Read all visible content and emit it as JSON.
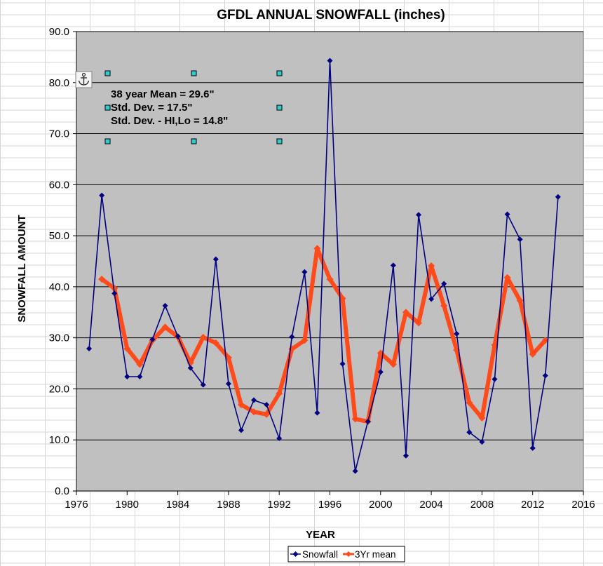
{
  "colors": {
    "plot_bg": "#c0c0c0",
    "snowfall": "#000080",
    "mean": "#ff4a1a",
    "sheet_grid": "#d4d4d4",
    "handle": "#33cccc"
  },
  "icons": {
    "anchor": "anchor-icon"
  },
  "chart_data": {
    "type": "line",
    "title": "GFDL ANNUAL SNOWFALL (inches)",
    "xlabel": "YEAR",
    "ylabel": "SNOWFALL AMOUNT",
    "xlim": [
      1976,
      2016
    ],
    "ylim": [
      0,
      90
    ],
    "x_ticks": [
      1976,
      1980,
      1984,
      1988,
      1992,
      1996,
      2000,
      2004,
      2008,
      2012,
      2016
    ],
    "y_ticks": [
      0,
      10,
      20,
      30,
      40,
      50,
      60,
      70,
      80,
      90
    ],
    "y_tick_labels": [
      "0.0",
      "10.0",
      "20.0",
      "30.0",
      "40.0",
      "50.0",
      "60.0",
      "70.0",
      "80.0",
      "90.0"
    ],
    "grid": "horizontal",
    "legend_position": "bottom",
    "annotations": [
      "38 year Mean = 29.6\"",
      "Std. Dev. = 17.5\"",
      "Std. Dev. - HI,Lo = 14.8\""
    ],
    "series": [
      {
        "name": "Snowfall",
        "x": [
          1977,
          1978,
          1979,
          1980,
          1981,
          1982,
          1983,
          1984,
          1985,
          1986,
          1987,
          1988,
          1989,
          1990,
          1991,
          1992,
          1993,
          1994,
          1995,
          1996,
          1997,
          1998,
          1999,
          2000,
          2001,
          2002,
          2003,
          2004,
          2005,
          2006,
          2007,
          2008,
          2009,
          2010,
          2011,
          2012,
          2013,
          2014
        ],
        "values": [
          27.9,
          57.9,
          38.7,
          22.4,
          22.4,
          29.7,
          36.3,
          30.3,
          24.1,
          20.8,
          45.4,
          21.0,
          11.9,
          17.8,
          16.9,
          10.3,
          30.2,
          42.9,
          15.3,
          84.3,
          24.9,
          3.9,
          13.6,
          23.3,
          44.2,
          6.9,
          54.1,
          37.6,
          40.6,
          30.8,
          11.5,
          9.6,
          21.9,
          54.2,
          49.3,
          8.4,
          22.6,
          57.6
        ]
      },
      {
        "name": "3Yr mean",
        "x": [
          1978,
          1979,
          1980,
          1981,
          1982,
          1983,
          1984,
          1985,
          1986,
          1987,
          1988,
          1989,
          1990,
          1991,
          1992,
          1993,
          1994,
          1995,
          1996,
          1997,
          1998,
          1999,
          2000,
          2001,
          2002,
          2003,
          2004,
          2005,
          2006,
          2007,
          2008,
          2009,
          2010,
          2011,
          2012,
          2013
        ],
        "values": [
          41.5,
          39.7,
          27.9,
          24.8,
          29.5,
          32.1,
          30.2,
          25.1,
          30.1,
          29.0,
          26.1,
          16.9,
          15.5,
          15.0,
          19.1,
          27.8,
          29.5,
          47.5,
          41.5,
          37.7,
          14.1,
          13.6,
          27.0,
          24.8,
          35.0,
          32.9,
          44.1,
          36.3,
          27.6,
          17.3,
          14.3,
          28.6,
          41.8,
          37.3,
          26.8,
          29.5
        ]
      }
    ]
  }
}
